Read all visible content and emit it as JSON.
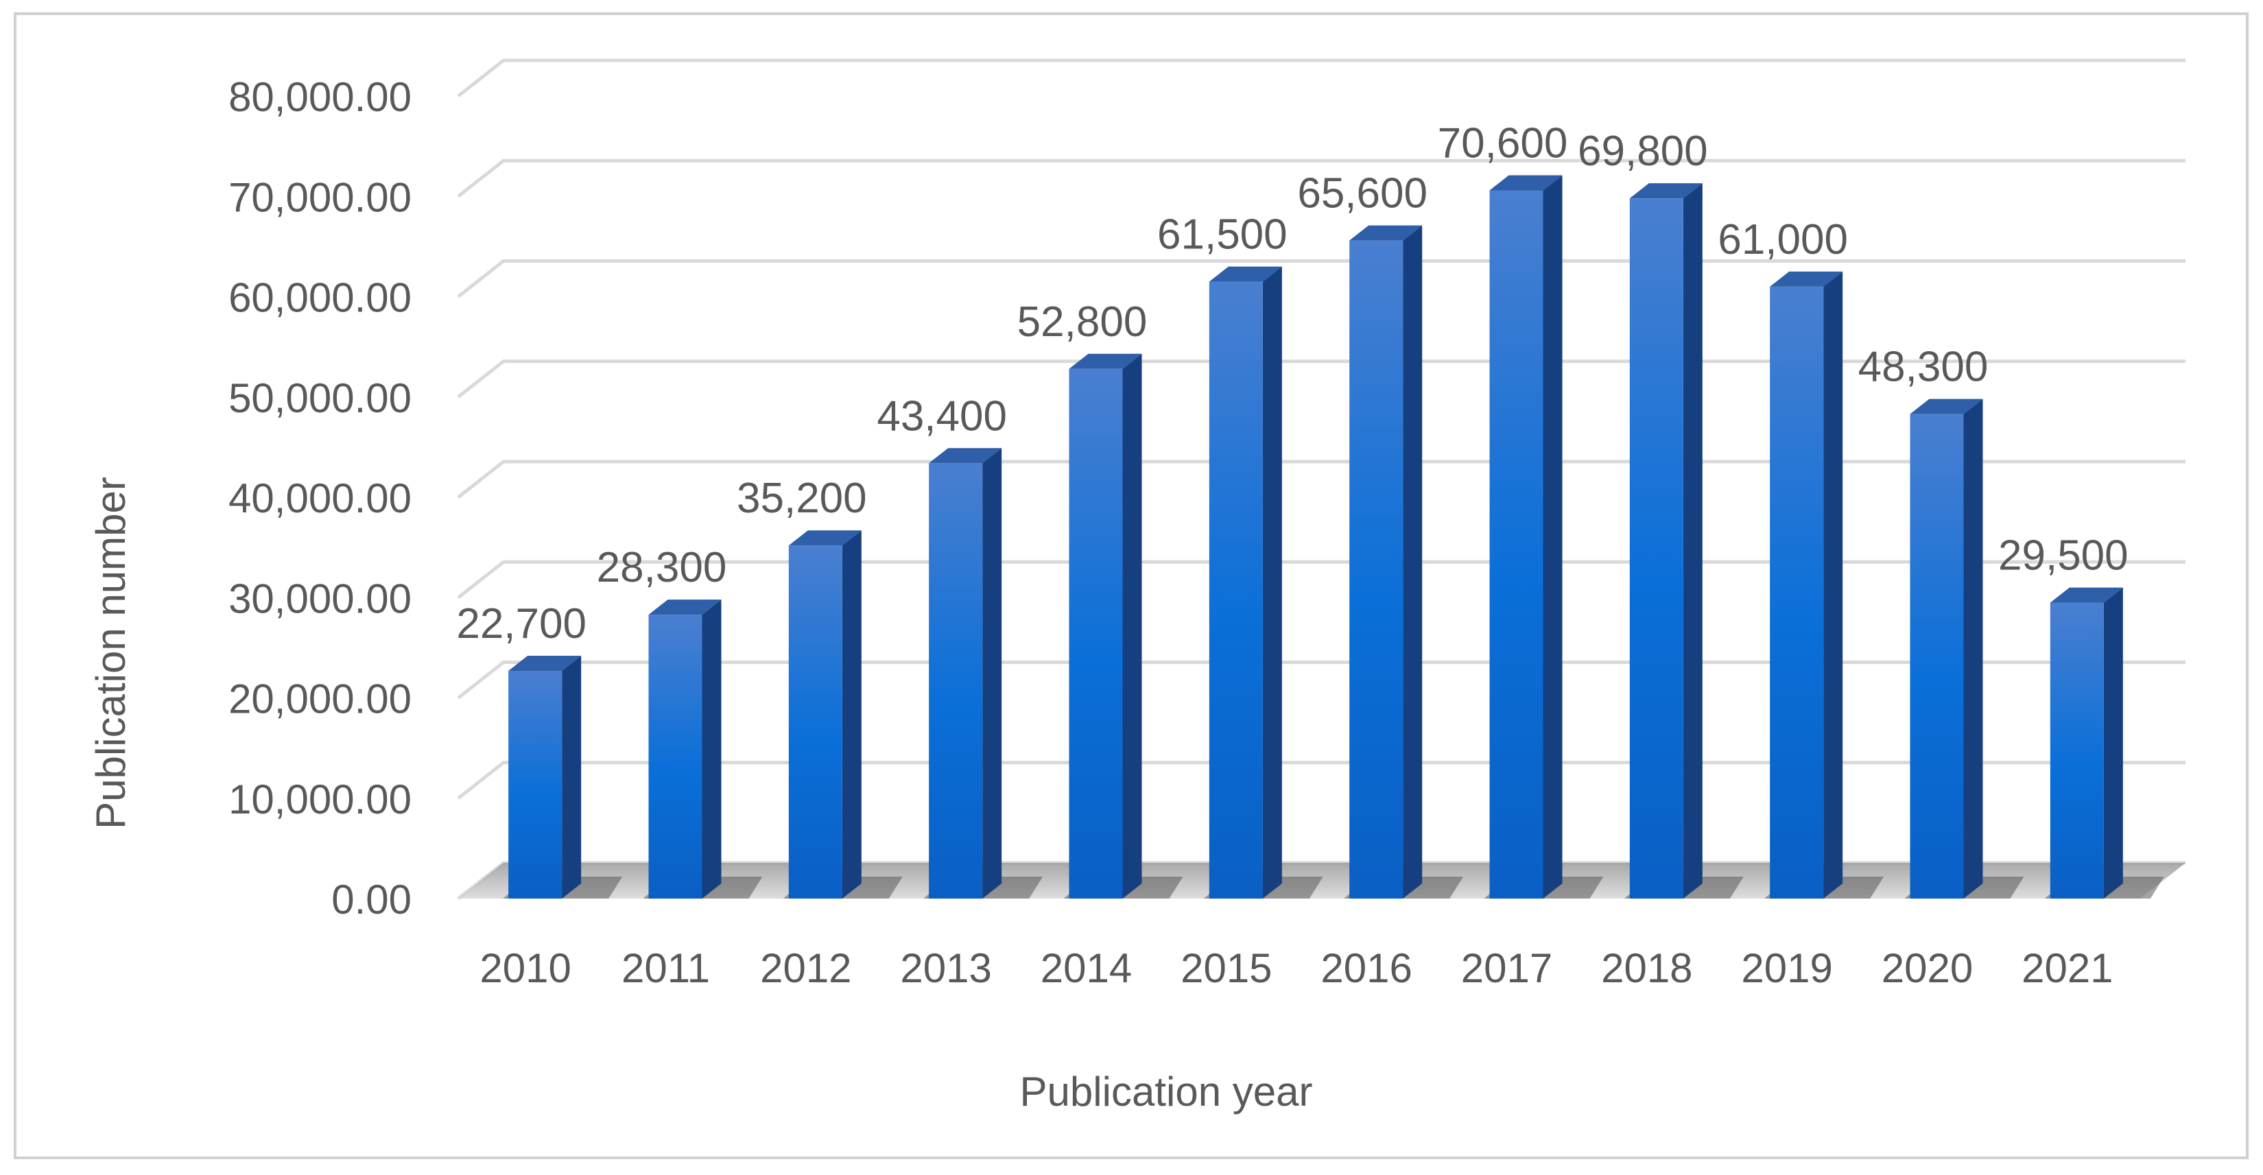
{
  "chart_data": {
    "type": "bar",
    "categories": [
      "2010",
      "2011",
      "2012",
      "2013",
      "2014",
      "2015",
      "2016",
      "2017",
      "2018",
      "2019",
      "2020",
      "2021"
    ],
    "values": [
      22700,
      28300,
      35200,
      43400,
      52800,
      61500,
      65600,
      70600,
      69800,
      61000,
      48300,
      29500
    ],
    "data_labels": [
      "22,700",
      "28,300",
      "35,200",
      "43,400",
      "52,800",
      "61,500",
      "65,600",
      "70,600",
      "69,800",
      "61,000",
      "48,300",
      "29,500"
    ],
    "y_ticks": [
      "0.00",
      "10,000.00",
      "20,000.00",
      "30,000.00",
      "40,000.00",
      "50,000.00",
      "60,000.00",
      "70,000.00",
      "80,000.00"
    ],
    "xlabel": "Publication year",
    "ylabel": "Publication number",
    "ylim": [
      0,
      80000
    ],
    "grid": true,
    "legend": "none",
    "bar_color": "#1f6fd1",
    "bar_side_color": "#163f80",
    "bar_top_color": "#2e5fa8"
  }
}
